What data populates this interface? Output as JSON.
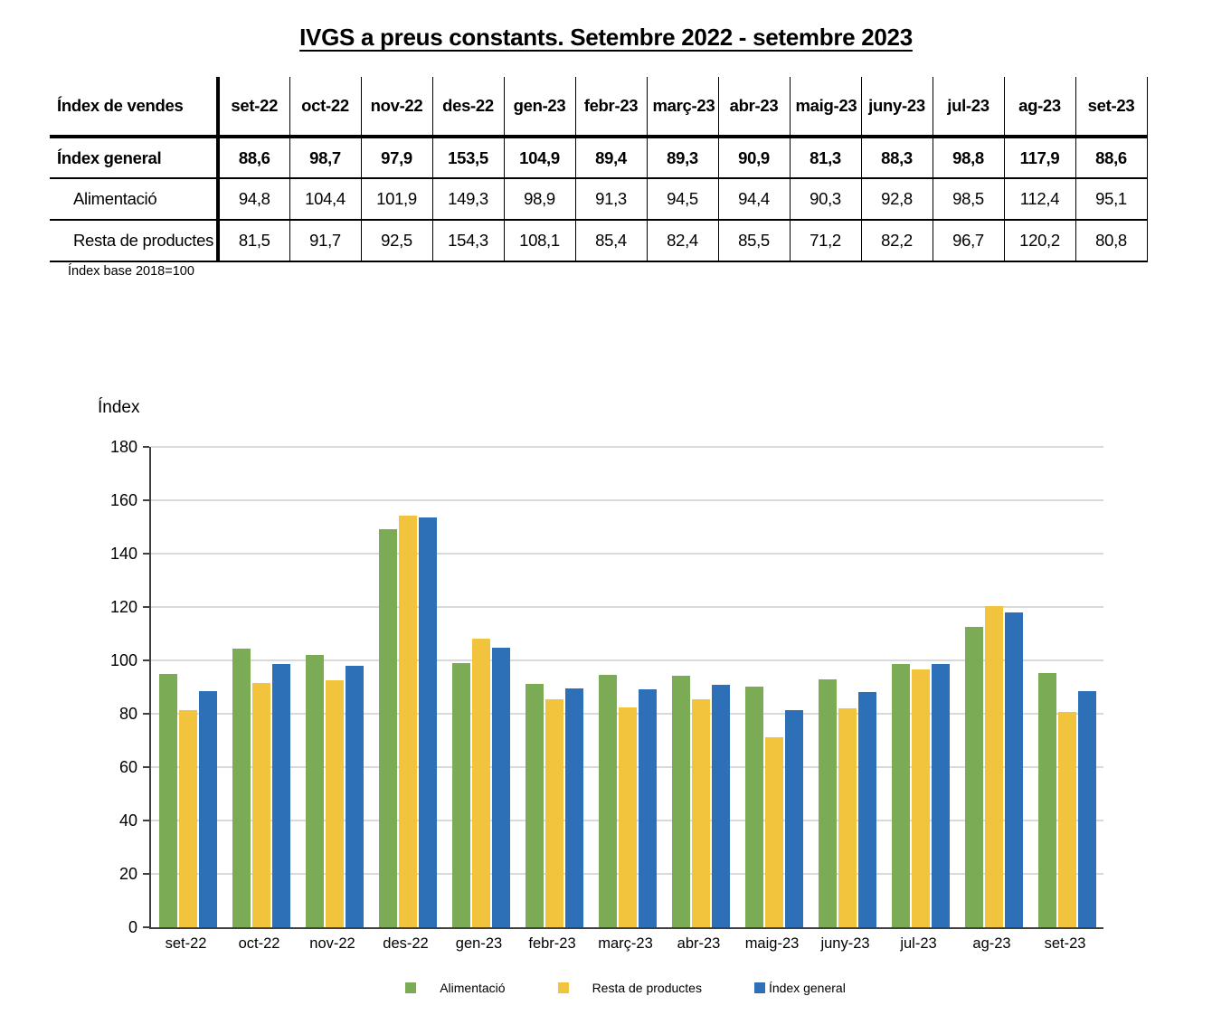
{
  "title": "IVGS a preus constants. Setembre  2022 - setembre  2023",
  "table": {
    "header": [
      "Índex de vendes",
      "set-22",
      "oct-22",
      "nov-22",
      "des-22",
      "gen-23",
      "febr-23",
      "març-23",
      "abr-23",
      "maig-23",
      "juny-23",
      "jul-23",
      "ag-23",
      "set-23"
    ],
    "rows": [
      {
        "label": "Índex general",
        "bold": true,
        "values": [
          "88,6",
          "98,7",
          "97,9",
          "153,5",
          "104,9",
          "89,4",
          "89,3",
          "90,9",
          "81,3",
          "88,3",
          "98,8",
          "117,9",
          "88,6"
        ]
      },
      {
        "label": "Alimentació",
        "bold": false,
        "values": [
          "94,8",
          "104,4",
          "101,9",
          "149,3",
          "98,9",
          "91,3",
          "94,5",
          "94,4",
          "90,3",
          "92,8",
          "98,5",
          "112,4",
          "95,1"
        ]
      },
      {
        "label": "Resta de productes",
        "bold": false,
        "values": [
          "81,5",
          "91,7",
          "92,5",
          "154,3",
          "108,1",
          "85,4",
          "82,4",
          "85,5",
          "71,2",
          "82,2",
          "96,7",
          "120,2",
          "80,8"
        ]
      }
    ],
    "footnote": "Índex base 2018=100"
  },
  "chart_data": {
    "type": "bar",
    "axis_title": "Índex",
    "categories": [
      "set-22",
      "oct-22",
      "nov-22",
      "des-22",
      "gen-23",
      "febr-23",
      "març-23",
      "abr-23",
      "maig-23",
      "juny-23",
      "jul-23",
      "ag-23",
      "set-23"
    ],
    "series": [
      {
        "name": "Alimentació",
        "color": "#7bac55",
        "values": [
          94.8,
          104.4,
          101.9,
          149.3,
          98.9,
          91.3,
          94.5,
          94.4,
          90.3,
          92.8,
          98.5,
          112.4,
          95.1
        ]
      },
      {
        "name": "Resta de productes",
        "color": "#f2c33d",
        "values": [
          81.5,
          91.7,
          92.5,
          154.3,
          108.1,
          85.4,
          82.4,
          85.5,
          71.2,
          82.2,
          96.7,
          120.2,
          80.8
        ]
      },
      {
        "name": "Índex general",
        "color": "#2e70b7",
        "values": [
          88.6,
          98.7,
          97.9,
          153.5,
          104.9,
          89.4,
          89.3,
          90.9,
          81.3,
          88.3,
          98.8,
          117.9,
          88.6
        ]
      }
    ],
    "ylim": [
      0,
      180
    ],
    "ytick_step": 20,
    "grid": true,
    "legend_position": "bottom",
    "colors": {
      "gridline": "#d9d9d9",
      "axis": "#404040"
    }
  }
}
